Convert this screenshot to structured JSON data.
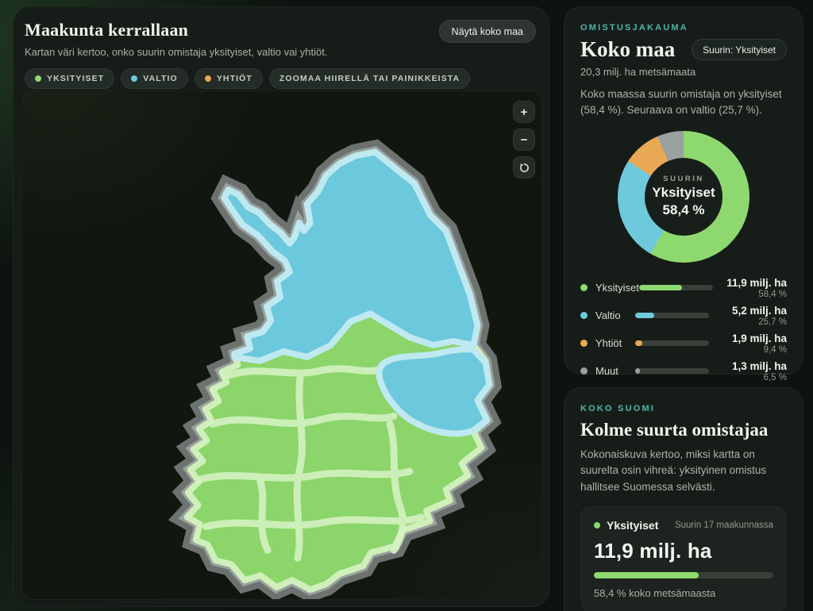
{
  "header": {
    "title": "Maakunta kerrallaan",
    "subtitle": "Kartan väri kertoo, onko suurin omistaja yksityiset, valtio vai yhtiöt.",
    "show_country_button": "Näytä koko maa",
    "chips": [
      {
        "label": "YKSITYISET",
        "color": "#8ed96f"
      },
      {
        "label": "VALTIO",
        "color": "#6ec9dd"
      },
      {
        "label": "YHTIÖT",
        "color": "#e9a853"
      },
      {
        "label": "ZOOMAA HIIRELLÄ TAI PAINIKKEISTA",
        "color": null
      }
    ]
  },
  "map": {
    "controls": {
      "zoom_in": "+",
      "zoom_out": "−"
    },
    "colors": {
      "private_green": "#8bd56a",
      "state_cyan": "#6cc8dc",
      "halo_gray": "#6b7270",
      "halo_gray_light": "#9aa19d"
    }
  },
  "ownership": {
    "eyebrow": "OMISTUSJAKAUMA",
    "title": "Koko maa",
    "badge": "Suurin: Yksityiset",
    "subtitle": "20,3 milj. ha metsämaata",
    "description": "Koko maassa suurin omistaja on yksityiset (58,4 %). Seuraava on valtio (25,7 %).",
    "donut_center": {
      "label": "SUURIN",
      "name": "Yksityiset",
      "value": "58,4 %"
    },
    "rows": [
      {
        "name": "Yksityiset",
        "amount": "11,9 milj. ha",
        "percent_label": "58,4 %",
        "percent": 58.4,
        "color": "#8ed96f"
      },
      {
        "name": "Valtio",
        "amount": "5,2 milj. ha",
        "percent_label": "25,7 %",
        "percent": 25.7,
        "color": "#6ec9dd"
      },
      {
        "name": "Yhtiöt",
        "amount": "1,9 milj. ha",
        "percent_label": "9,4 %",
        "percent": 9.4,
        "color": "#e9a853"
      },
      {
        "name": "Muut",
        "amount": "1,3 milj. ha",
        "percent_label": "6,5 %",
        "percent": 6.5,
        "color": "#9aa0a0"
      }
    ]
  },
  "summary": {
    "eyebrow": "KOKO SUOMI",
    "title": "Kolme suurta omistajaa",
    "description": "Kokonaiskuva kertoo, miksi kartta on suurelta osin vihreä: yksityinen omistus hallitsee Suomessa selvästi.",
    "owner_box": {
      "name": "Yksityiset",
      "note": "Suurin 17 maakunnassa",
      "amount": "11,9 milj. ha",
      "percent": 58.4,
      "caption": "58,4 % koko metsämaasta",
      "color": "#8ed96f"
    }
  },
  "chart_data": {
    "type": "pie",
    "title": "Omistusjakauma — Koko maa",
    "donut": true,
    "legend_position": "below",
    "center": {
      "label": "SUURIN",
      "name": "Yksityiset",
      "value": "58,4 %"
    },
    "slices": [
      {
        "label": "Yksityiset",
        "percent": 58.4,
        "amount_milj_ha": 11.9,
        "color": "#8ed96f"
      },
      {
        "label": "Valtio",
        "percent": 25.7,
        "amount_milj_ha": 5.2,
        "color": "#6ec9dd"
      },
      {
        "label": "Yhtiöt",
        "percent": 9.4,
        "amount_milj_ha": 1.9,
        "color": "#e9a853"
      },
      {
        "label": "Muut",
        "percent": 6.5,
        "amount_milj_ha": 1.3,
        "color": "#9aa0a0"
      }
    ]
  }
}
